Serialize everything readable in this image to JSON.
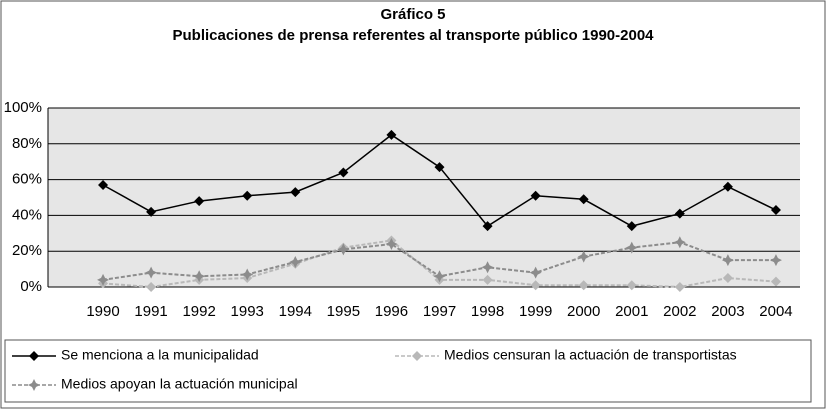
{
  "chart_data": {
    "type": "line",
    "title": "Gráfico 5",
    "subtitle": "Publicaciones de prensa referentes al transporte público 1990-2004",
    "categories": [
      "1990",
      "1991",
      "1992",
      "1993",
      "1994",
      "1995",
      "1996",
      "1997",
      "1998",
      "1999",
      "2000",
      "2001",
      "2002",
      "2003",
      "2004"
    ],
    "series": [
      {
        "name": "Se menciona a la municipalidad",
        "color": "#000000",
        "marker": "diamond",
        "linestyle": "solid",
        "values": [
          57,
          42,
          48,
          51,
          53,
          64,
          85,
          67,
          34,
          51,
          49,
          34,
          41,
          56,
          43
        ]
      },
      {
        "name": "Medios censuran la actuación de transportistas",
        "color": "#b8b8b8",
        "marker": "diamond",
        "linestyle": "dashed",
        "values": [
          2,
          0,
          4,
          5,
          13,
          22,
          26,
          4,
          4,
          1,
          1,
          1,
          0,
          5,
          3
        ]
      },
      {
        "name": "Medios apoyan la actuación municipal",
        "color": "#8c8c8c",
        "marker": "star",
        "linestyle": "dashed",
        "values": [
          4,
          8,
          6,
          7,
          14,
          21,
          24,
          6,
          11,
          8,
          17,
          22,
          25,
          15,
          15
        ]
      }
    ],
    "ylim": [
      0,
      100
    ],
    "yticks": [
      {
        "value": 0,
        "label": "0%"
      },
      {
        "value": 20,
        "label": "20%"
      },
      {
        "value": 40,
        "label": "40%"
      },
      {
        "value": 60,
        "label": "60%"
      },
      {
        "value": 80,
        "label": "80%"
      },
      {
        "value": 100,
        "label": "100%"
      }
    ],
    "grid": true,
    "legend": "bottom"
  }
}
